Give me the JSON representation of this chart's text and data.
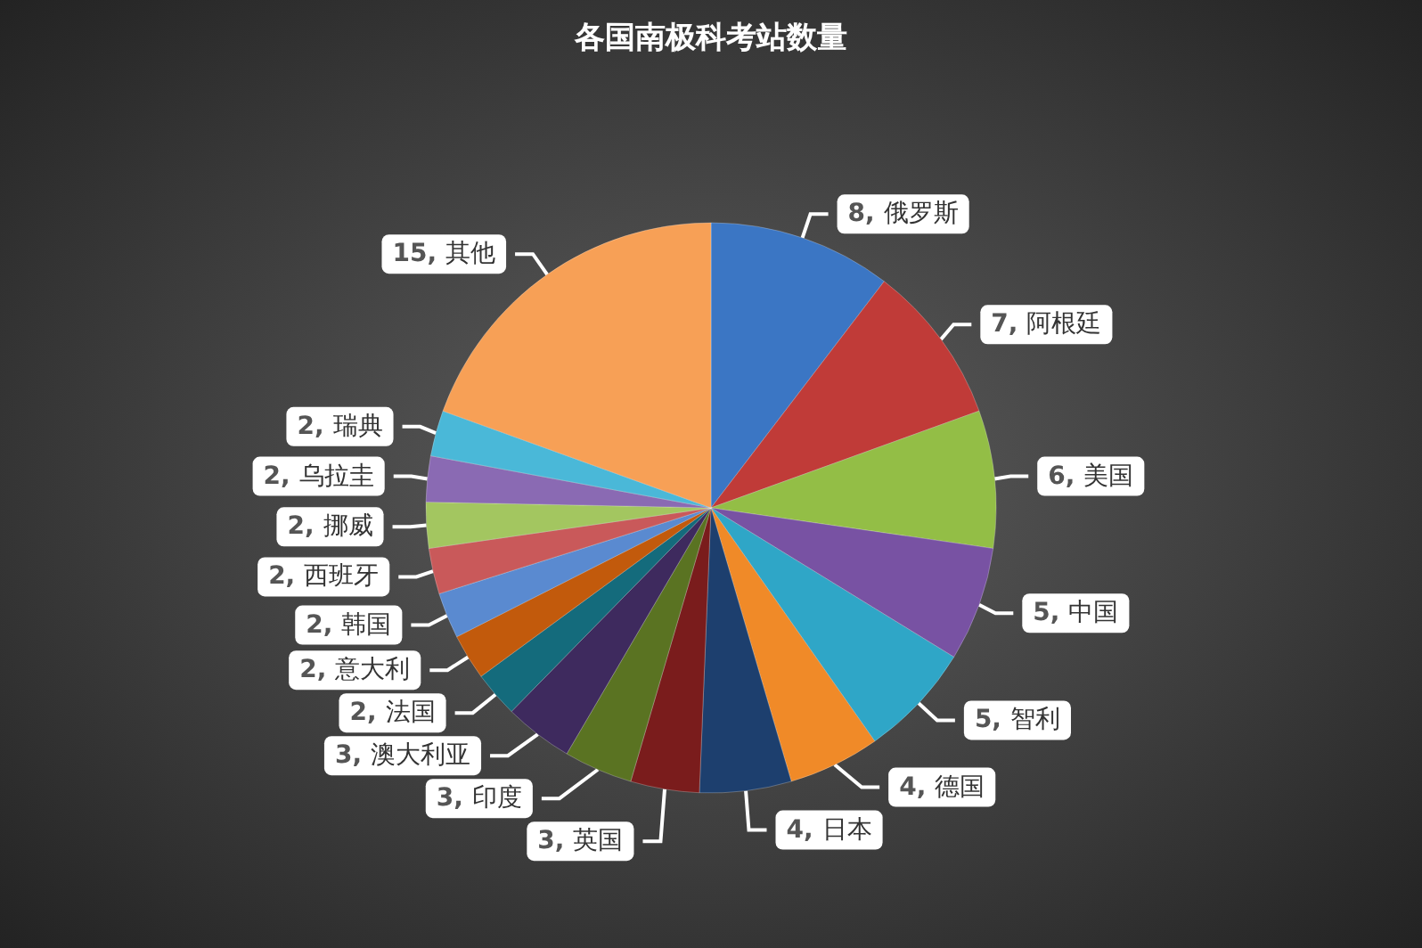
{
  "chart_data": {
    "type": "pie",
    "title": "各国南极科考站数量",
    "categories": [
      "俄罗斯",
      "阿根廷",
      "美国",
      "中国",
      "智利",
      "德国",
      "日本",
      "英国",
      "印度",
      "澳大利亚",
      "法国",
      "意大利",
      "韩国",
      "西班牙",
      "挪威",
      "乌拉圭",
      "瑞典",
      "其他"
    ],
    "values": [
      8,
      7,
      6,
      5,
      5,
      4,
      4,
      3,
      3,
      3,
      2,
      2,
      2,
      2,
      2,
      2,
      2,
      15
    ],
    "value_labels": [
      "8,",
      "7,",
      "6,",
      "5,",
      "5,",
      "4,",
      "4,",
      "3,",
      "3,",
      "3,",
      "2,",
      "2,",
      "2,",
      "2,",
      "2,",
      "2,",
      "2,",
      "15,"
    ],
    "colors": [
      "#3b76c4",
      "#c03b38",
      "#93be46",
      "#7852a3",
      "#2fa6c7",
      "#f08a28",
      "#1d3f6e",
      "#7a1c1c",
      "#5a7322",
      "#3e2a5e",
      "#146b7c",
      "#c25a0c",
      "#5a8ad0",
      "#c9595a",
      "#a3c660",
      "#8a6ab3",
      "#4ab8d8",
      "#f7a056"
    ]
  }
}
